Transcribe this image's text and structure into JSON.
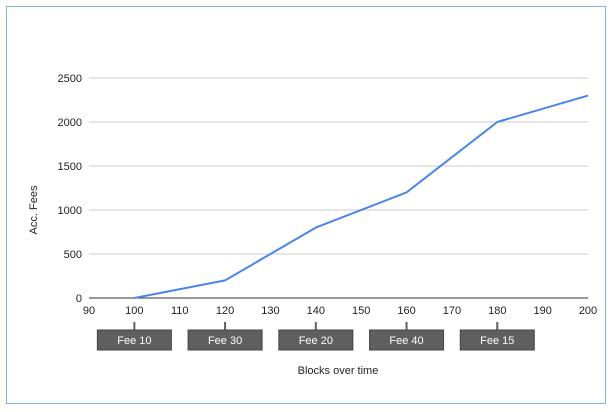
{
  "chart_data": {
    "type": "line",
    "title": "",
    "xlabel": "Blocks over time",
    "ylabel": "Acc. Fees",
    "xlim": [
      90,
      200
    ],
    "ylim": [
      0,
      2500
    ],
    "x_ticks": [
      90,
      100,
      110,
      120,
      130,
      140,
      150,
      160,
      170,
      180,
      190,
      200
    ],
    "y_ticks": [
      0,
      500,
      1000,
      1500,
      2000,
      2500
    ],
    "grid": true,
    "legend": "none",
    "series": [
      {
        "color": "#4a86e8",
        "points": [
          {
            "x": 100,
            "y": 0
          },
          {
            "x": 120,
            "y": 200
          },
          {
            "x": 140,
            "y": 800
          },
          {
            "x": 160,
            "y": 1200
          },
          {
            "x": 180,
            "y": 2000
          },
          {
            "x": 200,
            "y": 2300
          }
        ]
      }
    ],
    "annotations": [
      {
        "x": 100,
        "label": "Fee 10"
      },
      {
        "x": 120,
        "label": "Fee 30"
      },
      {
        "x": 140,
        "label": "Fee 20"
      },
      {
        "x": 160,
        "label": "Fee 40"
      },
      {
        "x": 180,
        "label": "Fee 15"
      }
    ],
    "colors": {
      "line": "#4a86e8",
      "grid": "#cccccc",
      "annotation_box": "#5f5f5f",
      "frame": "#7fb5e3"
    }
  }
}
